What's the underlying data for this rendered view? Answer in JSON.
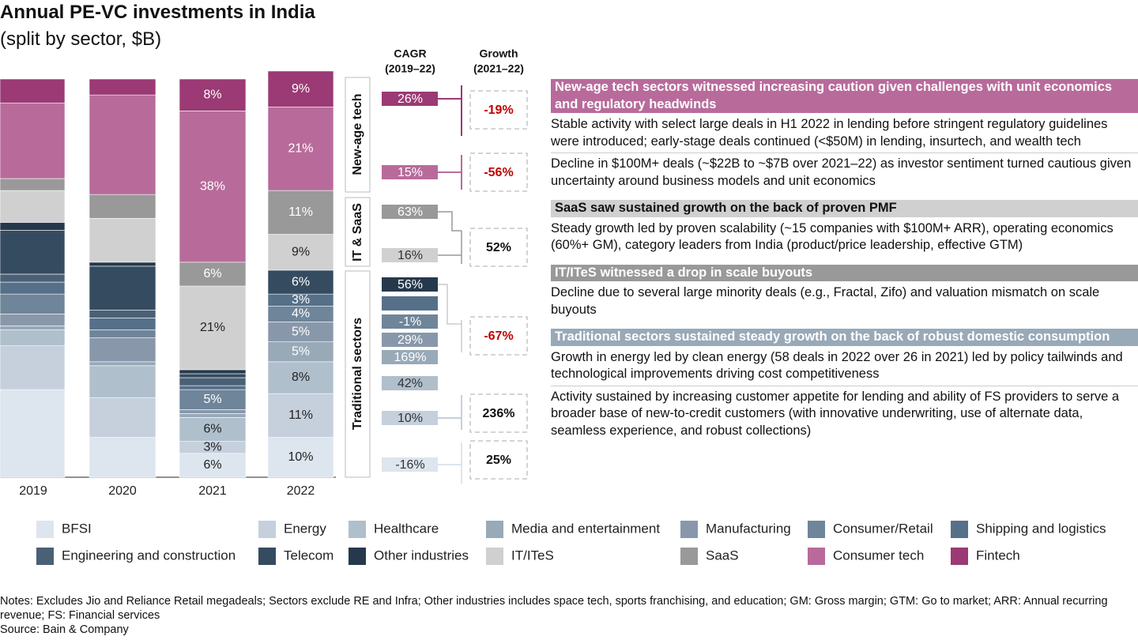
{
  "chart_data": {
    "type": "bar",
    "stacked": true,
    "title": "Annual PE-VC investments in India",
    "subtitle": "(split by sector, $B)",
    "categories": [
      "2019",
      "2020",
      "2021",
      "2022"
    ],
    "series": [
      {
        "name": "BFSI",
        "color": "#dde5ee",
        "values": [
          22,
          10,
          6,
          10
        ],
        "value_labels": [
          null,
          null,
          "6%",
          "10%"
        ]
      },
      {
        "name": "Energy",
        "color": "#c5d0dc",
        "values": [
          11,
          10,
          3,
          11
        ],
        "value_labels": [
          null,
          null,
          "3%",
          "11%"
        ]
      },
      {
        "name": "Healthcare",
        "color": "#b0bfcc",
        "values": [
          4,
          8,
          6,
          8
        ],
        "value_labels": [
          null,
          null,
          "6%",
          "8%"
        ]
      },
      {
        "name": "Media and entertainment",
        "color": "#98a9b8",
        "values": [
          1,
          1,
          1,
          5
        ],
        "value_labels": [
          null,
          null,
          null,
          "5%"
        ]
      },
      {
        "name": "Manufacturing",
        "color": "#8898aa",
        "values": [
          3,
          6,
          1,
          5
        ],
        "value_labels": [
          null,
          null,
          null,
          "5%"
        ]
      },
      {
        "name": "Consumer/Retail",
        "color": "#6f8599",
        "values": [
          5,
          2,
          5,
          4
        ],
        "value_labels": [
          null,
          null,
          "5%",
          "4%"
        ]
      },
      {
        "name": "Shipping and logistics",
        "color": "#56708a",
        "values": [
          3,
          3,
          1,
          3
        ],
        "value_labels": [
          null,
          null,
          null,
          "3%"
        ]
      },
      {
        "name": "Engineering and construction",
        "color": "#4a6075",
        "values": [
          2,
          2,
          2,
          0
        ],
        "value_labels": [
          null,
          null,
          null,
          null
        ]
      },
      {
        "name": "Telecom",
        "color": "#354b60",
        "values": [
          11,
          11,
          1,
          6
        ],
        "value_labels": [
          null,
          null,
          null,
          "6%"
        ]
      },
      {
        "name": "Other industries",
        "color": "#26394c",
        "values": [
          2,
          1,
          1,
          0
        ],
        "value_labels": [
          null,
          null,
          null,
          null
        ]
      },
      {
        "name": "IT/ITeS",
        "color": "#d0d0d0",
        "values": [
          8,
          11,
          21,
          9
        ],
        "value_labels": [
          null,
          null,
          "21%",
          "9%"
        ]
      },
      {
        "name": "SaaS",
        "color": "#999999",
        "values": [
          3,
          6,
          6,
          11
        ],
        "value_labels": [
          null,
          null,
          "6%",
          "11%"
        ]
      },
      {
        "name": "Consumer tech",
        "color": "#b86b9b",
        "values": [
          19,
          25,
          38,
          21
        ],
        "value_labels": [
          null,
          null,
          "38%",
          "21%"
        ]
      },
      {
        "name": "Fintech",
        "color": "#9b3a74",
        "values": [
          6,
          4,
          8,
          9
        ],
        "value_labels": [
          null,
          null,
          "8%",
          "9%"
        ]
      }
    ]
  },
  "metrics": {
    "group_labels": [
      "New-age tech",
      "IT & SaaS",
      "Traditional sectors"
    ],
    "cagr": {
      "title": "CAGR",
      "period": "(2019–22)",
      "values": [
        26,
        15,
        63,
        16,
        56,
        null,
        -1,
        29,
        169,
        42,
        10,
        -16
      ],
      "value_labels": [
        "26%",
        "15%",
        "63%",
        "16%",
        "56%",
        null,
        "-1%",
        "29%",
        "169%",
        "42%",
        "10%",
        "-16%"
      ],
      "colors": [
        "#9b3a74",
        "#b86b9b",
        "#999999",
        "#d0d0d0",
        "#26394c",
        "#56708a",
        "#6f8599",
        "#8898aa",
        "#98a9b8",
        "#b0bfcc",
        "#c5d0dc",
        "#dde5ee"
      ]
    },
    "growth": {
      "title": "Growth",
      "period": "(2021–22)",
      "values": [
        -19,
        -56,
        52,
        -67,
        236,
        25
      ],
      "value_labels": [
        "-19%",
        "-56%",
        "52%",
        "-67%",
        "236%",
        "25%"
      ],
      "colors": [
        "#c00000",
        "#c00000",
        "#111111",
        "#c00000",
        "#111111",
        "#111111"
      ]
    }
  },
  "commentary": [
    {
      "header": "New-age tech sectors witnessed increasing caution given challenges with unit economics and regulatory headwinds",
      "color": "#b86b9b",
      "text_color": "#ffffff",
      "items": [
        "Stable activity with select large deals in H1 2022 in lending before stringent regulatory guidelines were introduced; early-stage deals continued (<$50M) in lending, insurtech, and wealth tech",
        "Decline in $100M+ deals (~$22B to ~$7B over 2021–22) as investor sentiment turned cautious given uncertainty around business models and unit economics"
      ]
    },
    {
      "header": "SaaS saw sustained growth on the back of proven PMF",
      "color": "#d0d0d0",
      "text_color": "#111111",
      "items": [
        "Steady growth led by proven scalability (~15 companies with $100M+ ARR), operating economics (60%+ GM), category leaders from India (product/price leadership, effective GTM)"
      ]
    },
    {
      "header": "IT/ITeS witnessed a drop in scale buyouts",
      "color": "#999999",
      "text_color": "#ffffff",
      "items": [
        "Decline due to several large minority deals (e.g., Fractal, Zifo) and valuation mismatch on scale buyouts"
      ]
    },
    {
      "header": "Traditional sectors sustained steady growth on the back of robust domestic consumption",
      "color": "#98a9b8",
      "text_color": "#ffffff",
      "items": [
        "Growth in energy led by clean energy (58 deals in 2022 over 26 in 2021) led by policy tailwinds and technological improvements driving cost competitiveness",
        "Activity sustained by increasing customer appetite for lending and ability of FS providers to serve a broader base of new-to-credit customers (with innovative underwriting, use of alternate data, seamless experience, and robust collections)"
      ]
    }
  ],
  "notes": [
    "Notes: Excludes Jio and Reliance Retail megadeals; Sectors exclude RE and Infra; Other industries includes space tech, sports franchising, and education; GM: Gross margin; GTM: Go to market; ARR: Annual recurring revenue; FS: Financial services",
    "Source: Bain & Company"
  ]
}
